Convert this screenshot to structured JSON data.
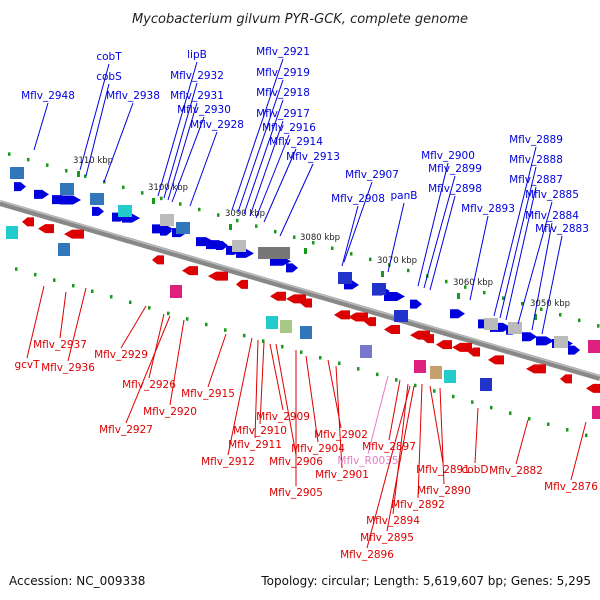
{
  "title": "Mycobacterium gilvum PYR-GCK, complete genome",
  "footer": {
    "accession": "Accession: NC_009338",
    "topology": "Topology: circular; Length: 5,619,607 bp; Genes: 5,295"
  },
  "colors": {
    "forward_gene": "#0000dd",
    "reverse_gene": "#dd0000",
    "pseudo_label": "#e57bbf",
    "backbone": "#888888",
    "tick_mark": "#1a9a1a"
  },
  "ticks": [
    "3110 kbp",
    "3100 kbp",
    "3090 kbp",
    "3080 kbp",
    "3070 kbp",
    "3060 kbp",
    "3050 kbp"
  ],
  "forward_genes": [
    "cobT",
    "cobS",
    "Mflv_2948",
    "Mflv_2938",
    "lipB",
    "Mflv_2932",
    "Mflv_2931",
    "Mflv_2930",
    "Mflv_2928",
    "Mflv_2921",
    "Mflv_2919",
    "Mflv_2918",
    "Mflv_2917",
    "Mflv_2916",
    "Mflv_2914",
    "Mflv_2913",
    "Mflv_2907",
    "Mflv_2908",
    "panB",
    "Mflv_2900",
    "Mflv_2899",
    "Mflv_2898",
    "Mflv_2893",
    "Mflv_2889",
    "Mflv_2888",
    "Mflv_2887",
    "Mflv_2885",
    "Mflv_2884",
    "Mflv_2883"
  ],
  "reverse_genes": [
    "Mflv_2937",
    "Mflv_2936",
    "gcvT",
    "Mflv_2929",
    "Mflv_2926",
    "Mflv_2927",
    "Mflv_2920",
    "Mflv_2915",
    "Mflv_2909",
    "Mflv_2910",
    "Mflv_2911",
    "Mflv_2912",
    "Mflv_2906",
    "Mflv_2904",
    "Mflv_2905",
    "Mflv_2902",
    "Mflv_2901",
    "Mflv_R0035",
    "Mflv_2897",
    "Mflv_2891",
    "Mflv_2892",
    "Mflv_2890",
    "Mflv_2894",
    "Mflv_2895",
    "Mflv_2896",
    "cobD",
    "Mflv_2882",
    "Mflv_2876"
  ]
}
